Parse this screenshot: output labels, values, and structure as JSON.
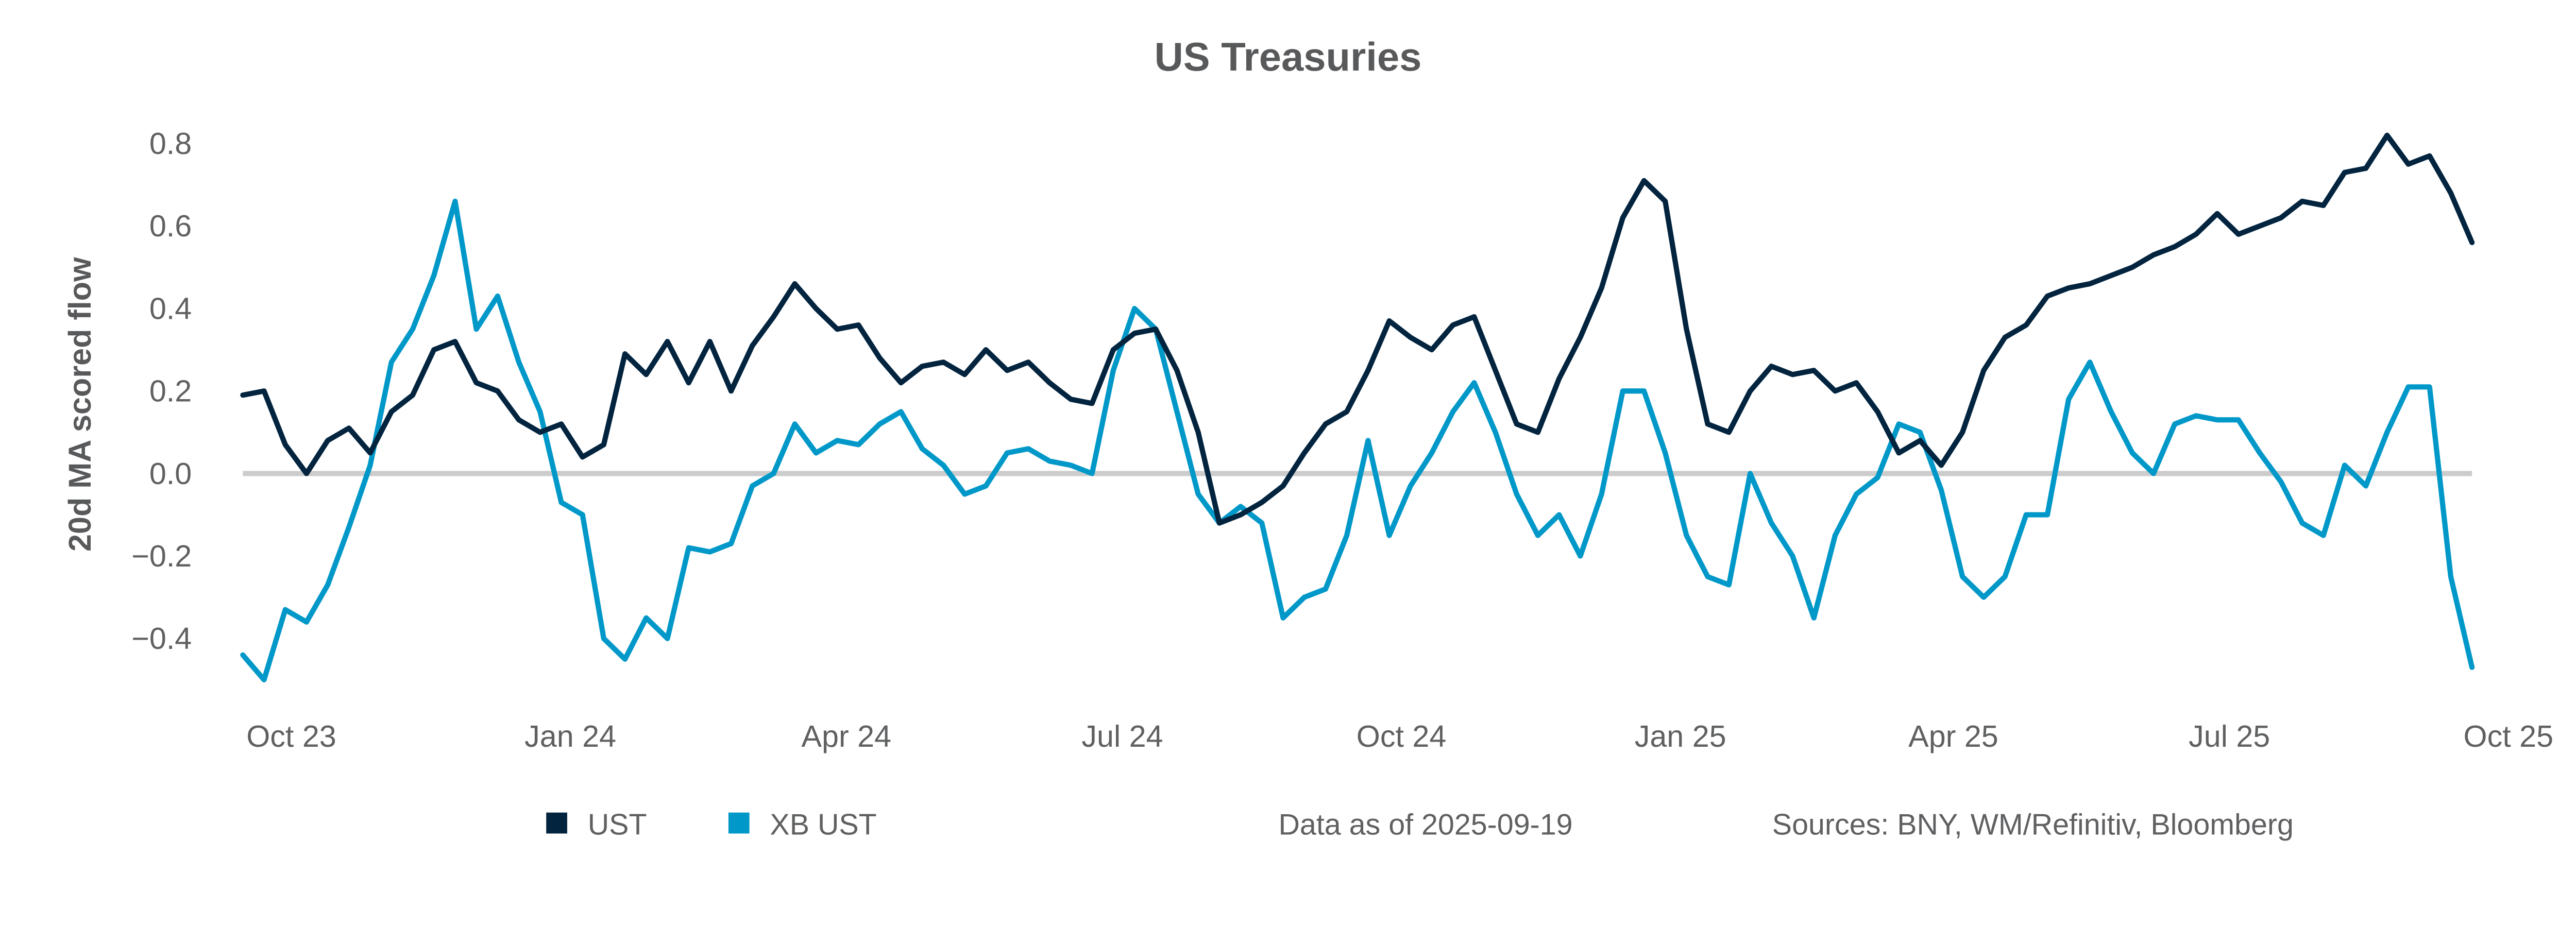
{
  "chart_data": {
    "type": "line",
    "title": "US Treasuries",
    "ylabel": "20d MA scored flow",
    "xlabel": "",
    "ylim": [
      -0.5,
      0.85
    ],
    "yticks": [
      -0.4,
      -0.2,
      0.0,
      0.2,
      0.4,
      0.6,
      0.8
    ],
    "ytick_labels": [
      "−0.4",
      "−0.2",
      "0.0",
      "0.2",
      "0.4",
      "0.6",
      "0.8"
    ],
    "xlim": [
      "2023-09-15",
      "2025-09-19"
    ],
    "xticks": [
      "2023-10-01",
      "2024-01-01",
      "2024-04-01",
      "2024-07-01",
      "2024-10-01",
      "2025-01-01",
      "2025-04-01",
      "2025-07-01",
      "2025-10-01"
    ],
    "xtick_labels": [
      "Oct 23",
      "Jan 24",
      "Apr 24",
      "Jul 24",
      "Oct 24",
      "Jan 25",
      "Apr 25",
      "Jul 25",
      "Oct 25"
    ],
    "grid": false,
    "zero_line": true,
    "legend_position": "bottom-left",
    "colors": {
      "UST": "#02243f",
      "XB UST": "#0098c8",
      "zero_line": "#cccccc"
    },
    "x": [
      "2023-09-15",
      "2023-09-22",
      "2023-09-29",
      "2023-10-06",
      "2023-10-13",
      "2023-10-20",
      "2023-10-27",
      "2023-11-03",
      "2023-11-10",
      "2023-11-17",
      "2023-11-24",
      "2023-12-01",
      "2023-12-08",
      "2023-12-15",
      "2023-12-22",
      "2023-12-29",
      "2024-01-05",
      "2024-01-12",
      "2024-01-19",
      "2024-01-26",
      "2024-02-02",
      "2024-02-09",
      "2024-02-16",
      "2024-02-23",
      "2024-03-01",
      "2024-03-08",
      "2024-03-15",
      "2024-03-22",
      "2024-03-29",
      "2024-04-05",
      "2024-04-12",
      "2024-04-19",
      "2024-04-26",
      "2024-05-03",
      "2024-05-10",
      "2024-05-17",
      "2024-05-24",
      "2024-05-31",
      "2024-06-07",
      "2024-06-14",
      "2024-06-21",
      "2024-06-28",
      "2024-07-05",
      "2024-07-12",
      "2024-07-19",
      "2024-07-26",
      "2024-08-02",
      "2024-08-09",
      "2024-08-16",
      "2024-08-23",
      "2024-08-30",
      "2024-09-06",
      "2024-09-13",
      "2024-09-20",
      "2024-09-27",
      "2024-10-04",
      "2024-10-11",
      "2024-10-18",
      "2024-10-25",
      "2024-11-01",
      "2024-11-08",
      "2024-11-15",
      "2024-11-22",
      "2024-11-29",
      "2024-12-06",
      "2024-12-13",
      "2024-12-20",
      "2024-12-27",
      "2025-01-03",
      "2025-01-10",
      "2025-01-17",
      "2025-01-24",
      "2025-01-31",
      "2025-02-07",
      "2025-02-14",
      "2025-02-21",
      "2025-02-28",
      "2025-03-07",
      "2025-03-14",
      "2025-03-21",
      "2025-03-28",
      "2025-04-04",
      "2025-04-11",
      "2025-04-18",
      "2025-04-25",
      "2025-05-02",
      "2025-05-09",
      "2025-05-16",
      "2025-05-23",
      "2025-05-30",
      "2025-06-06",
      "2025-06-13",
      "2025-06-20",
      "2025-06-27",
      "2025-07-04",
      "2025-07-11",
      "2025-07-18",
      "2025-07-25",
      "2025-08-01",
      "2025-08-08",
      "2025-08-15",
      "2025-08-22",
      "2025-08-29",
      "2025-09-05",
      "2025-09-12",
      "2025-09-19"
    ],
    "series": [
      {
        "name": "UST",
        "values": [
          0.19,
          0.2,
          0.07,
          0.0,
          0.08,
          0.11,
          0.05,
          0.15,
          0.19,
          0.3,
          0.32,
          0.22,
          0.2,
          0.13,
          0.1,
          0.12,
          0.04,
          0.07,
          0.29,
          0.24,
          0.32,
          0.22,
          0.32,
          0.2,
          0.31,
          0.38,
          0.46,
          0.4,
          0.35,
          0.36,
          0.28,
          0.22,
          0.26,
          0.27,
          0.24,
          0.3,
          0.25,
          0.27,
          0.22,
          0.18,
          0.17,
          0.3,
          0.34,
          0.35,
          0.25,
          0.1,
          -0.12,
          -0.1,
          -0.07,
          -0.03,
          0.05,
          0.12,
          0.15,
          0.25,
          0.37,
          0.33,
          0.3,
          0.36,
          0.38,
          0.25,
          0.12,
          0.1,
          0.23,
          0.33,
          0.45,
          0.62,
          0.71,
          0.66,
          0.35,
          0.12,
          0.1,
          0.2,
          0.26,
          0.24,
          0.25,
          0.2,
          0.22,
          0.15,
          0.05,
          0.08,
          0.02,
          0.1,
          0.25,
          0.33,
          0.36,
          0.43,
          0.45,
          0.46,
          0.48,
          0.5,
          0.53,
          0.55,
          0.58,
          0.63,
          0.58,
          0.6,
          0.62,
          0.66,
          0.65,
          0.73,
          0.74,
          0.82,
          0.75,
          0.77,
          0.68,
          0.56
        ]
      },
      {
        "name": "XB UST",
        "values": [
          -0.44,
          -0.5,
          -0.33,
          -0.36,
          -0.27,
          -0.13,
          0.02,
          0.27,
          0.35,
          0.48,
          0.66,
          0.35,
          0.43,
          0.27,
          0.15,
          -0.07,
          -0.1,
          -0.4,
          -0.45,
          -0.35,
          -0.4,
          -0.18,
          -0.19,
          -0.17,
          -0.03,
          0.0,
          0.12,
          0.05,
          0.08,
          0.07,
          0.12,
          0.15,
          0.06,
          0.02,
          -0.05,
          -0.03,
          0.05,
          0.06,
          0.03,
          0.02,
          0.0,
          0.25,
          0.4,
          0.35,
          0.15,
          -0.05,
          -0.12,
          -0.08,
          -0.12,
          -0.35,
          -0.3,
          -0.28,
          -0.15,
          0.08,
          -0.15,
          -0.03,
          0.05,
          0.15,
          0.22,
          0.1,
          -0.05,
          -0.15,
          -0.1,
          -0.2,
          -0.05,
          0.2,
          0.2,
          0.05,
          -0.15,
          -0.25,
          -0.27,
          0.0,
          -0.12,
          -0.2,
          -0.35,
          -0.15,
          -0.05,
          -0.01,
          0.12,
          0.1,
          -0.04,
          -0.25,
          -0.3,
          -0.25,
          -0.1,
          -0.1,
          0.18,
          0.27,
          0.15,
          0.05,
          0.0,
          0.12,
          0.14,
          0.13,
          0.13,
          0.05,
          -0.02,
          -0.12,
          -0.15,
          0.02,
          -0.03,
          0.1,
          0.21,
          0.21,
          -0.25,
          -0.47
        ]
      }
    ]
  },
  "footer": {
    "data_as_of": "Data as of 2025-09-19",
    "sources": "Sources:  BNY, WM/Refinitiv, Bloomberg"
  }
}
